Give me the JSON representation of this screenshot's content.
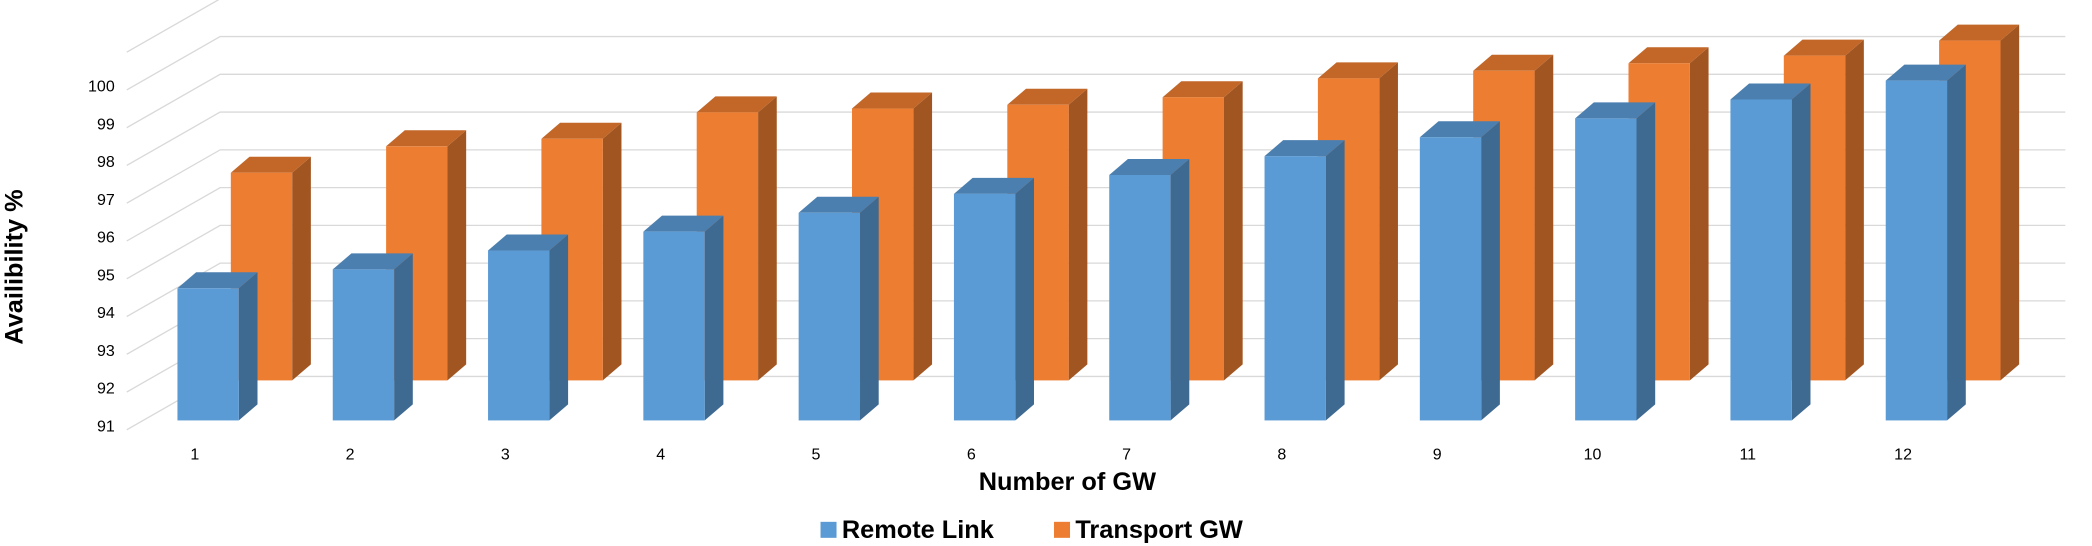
{
  "chart_data": {
    "type": "bar3d",
    "x_label": "Number of GW",
    "y_label": "Availibility %",
    "categories": [
      "1",
      "2",
      "3",
      "4",
      "5",
      "6",
      "7",
      "8",
      "9",
      "10",
      "11",
      "12"
    ],
    "series": [
      {
        "name": "Remote Link",
        "color": "#5b9bd5",
        "values": [
          94.5,
          95,
          95.5,
          96,
          96.5,
          97,
          97.5,
          98,
          98.5,
          99,
          99.5,
          100
        ]
      },
      {
        "name": "Transport GW",
        "color": "#ed7d31",
        "values": [
          96.5,
          97.2,
          97.4,
          98.1,
          98.2,
          98.3,
          98.5,
          99,
          99.2,
          99.4,
          99.6,
          100
        ]
      }
    ],
    "ylim": [
      91,
      101
    ],
    "yticks": [
      91,
      92,
      93,
      94,
      95,
      96,
      97,
      98,
      99,
      100
    ],
    "grid": true,
    "legend": "bottom"
  }
}
